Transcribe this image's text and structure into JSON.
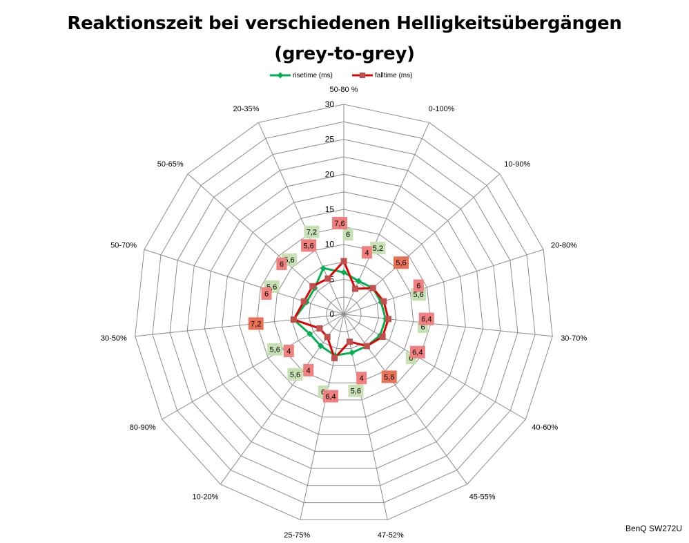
{
  "chart_data": {
    "type": "radar",
    "title_line1": "Reaktionszeit bei verschiedenen Helligkeitsübergängen",
    "title_line2": "(grey-to-grey)",
    "categories": [
      "50-80 %",
      "0-100%",
      "10-90%",
      "20-80%",
      "30-70%",
      "40-60%",
      "45-55%",
      "47-52%",
      "25-75%",
      "10-20%",
      "80-90%",
      "30-50%",
      "50-70%",
      "50-65%",
      "20-35%"
    ],
    "rlim": [
      0,
      30
    ],
    "rticks": [
      0,
      5,
      10,
      15,
      20,
      25,
      30
    ],
    "rtick_labels": [
      "0",
      "5",
      "10",
      "15",
      "20",
      "25",
      "30"
    ],
    "grid": true,
    "legend_position": "top",
    "series": [
      {
        "name": "risetime (ms)",
        "color": "#00b050",
        "marker": "diamond",
        "values": [
          6,
          5.2,
          5.6,
          5.6,
          6,
          6,
          5.6,
          5.6,
          6,
          5.6,
          5.6,
          7.2,
          5.6,
          5.6,
          7.2
        ],
        "labels": [
          "6",
          "5,2",
          "5,6",
          "5,6",
          "6",
          "6",
          "5,6",
          "5,6",
          "6",
          "5,6",
          "5,6",
          "7,2",
          "5,6",
          "5,6",
          "7,2"
        ]
      },
      {
        "name": "falltime (ms)",
        "color": "#e00000",
        "marker": "square",
        "values": [
          7.6,
          4,
          5.6,
          6,
          6.4,
          6.4,
          5.6,
          4,
          6.4,
          4,
          4,
          7.2,
          6,
          6,
          5.6
        ],
        "labels": [
          "7,6",
          "4",
          "5,6",
          "6",
          "6,4",
          "6,4",
          "5,6",
          "4",
          "6,4",
          "4",
          "4",
          "7,2",
          "6",
          "6",
          "5,6"
        ]
      }
    ]
  },
  "legend": {
    "risetime": "risetime (ms)",
    "falltime": "falltime (ms)"
  },
  "credit": "BenQ SW272U",
  "colors": {
    "grid": "#8c8c8c",
    "rise_label_bg": "#c6e0b4",
    "fall_label_bg": "#f08080",
    "overlap_label_bg": "#e97155"
  }
}
